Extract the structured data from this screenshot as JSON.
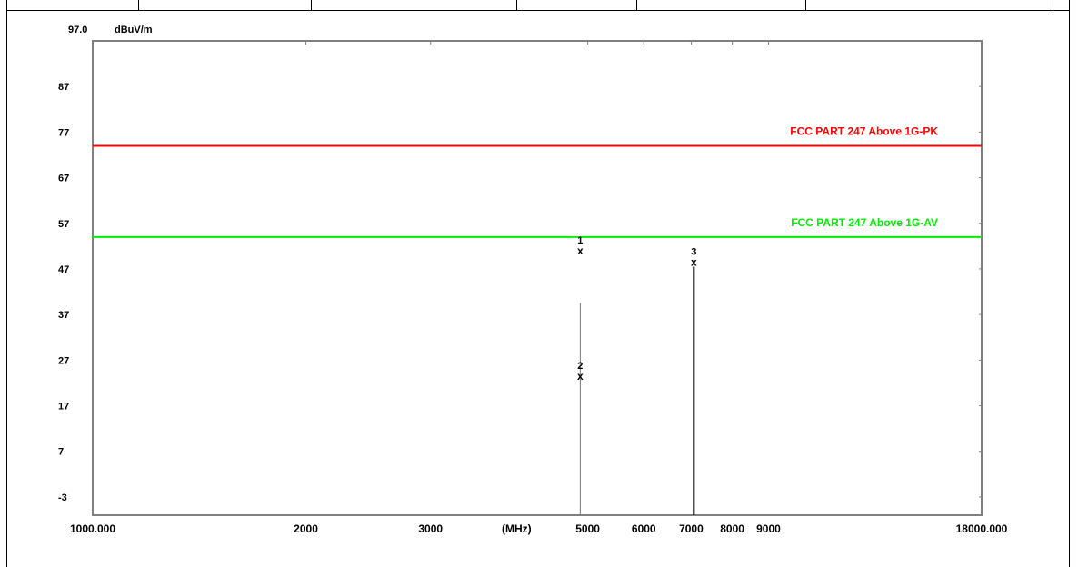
{
  "chart_data": {
    "type": "line",
    "y_top_label": "97.0",
    "unit_label": "dBuV/m",
    "x_unit_label": "(MHz)",
    "x_scale": "log",
    "xlim": [
      1000,
      18000
    ],
    "ylim": [
      -7,
      97
    ],
    "y_ticks": [
      87,
      77,
      67,
      57,
      47,
      37,
      27,
      17,
      7,
      -3
    ],
    "x_ticks": [
      {
        "value": 1000,
        "label": "1000.000"
      },
      {
        "value": 2000,
        "label": "2000"
      },
      {
        "value": 3000,
        "label": "3000"
      },
      {
        "value": 5000,
        "label": "5000"
      },
      {
        "value": 6000,
        "label": "6000"
      },
      {
        "value": 7000,
        "label": "7000"
      },
      {
        "value": 8000,
        "label": "8000"
      },
      {
        "value": 9000,
        "label": "9000"
      },
      {
        "value": 18000,
        "label": "18000.000"
      }
    ],
    "limit_lines": [
      {
        "name": "FCC PART 247 Above 1G-PK",
        "y": 74,
        "color": "#ff0000"
      },
      {
        "name": "FCC PART 247 Above 1G-AV",
        "y": 54,
        "color": "#00ee00"
      }
    ],
    "spikes": [
      {
        "x": 4880,
        "y": 39.5,
        "color": "#777777",
        "width": 1
      },
      {
        "x": 7060,
        "y": 47.5,
        "color": "#000000",
        "width": 2
      }
    ],
    "markers": [
      {
        "label": "1",
        "x": 4880,
        "y": 51
      },
      {
        "label": "2",
        "x": 4880,
        "y": 23.5
      },
      {
        "label": "3",
        "x": 7060,
        "y": 48.5
      }
    ],
    "grid": false,
    "colors": {
      "axis_frame": "#808080",
      "text": "#000000"
    }
  }
}
